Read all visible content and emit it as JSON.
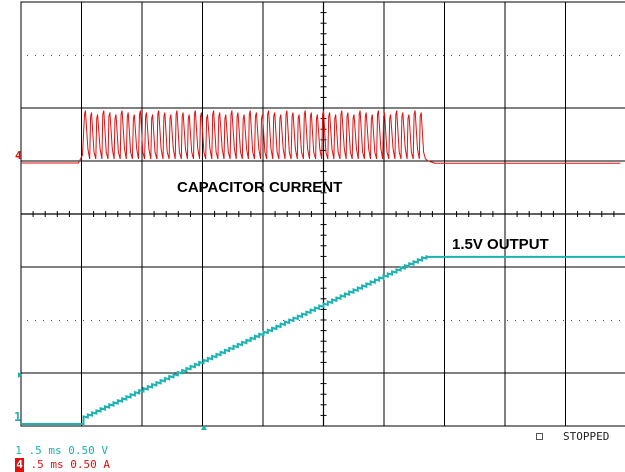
{
  "chart_data": {
    "type": "line",
    "title": "",
    "xlabel": "",
    "ylabel": "",
    "grid": true,
    "divisions": {
      "x": 10,
      "y": 8
    },
    "timebase": ".5 ms",
    "series": [
      {
        "name": "CAPACITOR CURRENT",
        "channel": "4",
        "color": "#e01010",
        "scale": "0.50 A",
        "marker": "4",
        "ripple_start_div": 1.05,
        "ripple_end_div": 6.7,
        "ripple_pulse_count": 56,
        "ripple_peak_div": 1.1,
        "ripple_baseline_div": 0.0
      },
      {
        "name": "1.5V OUTPUT",
        "channel": "1",
        "color": "#1ab2b2",
        "scale": "0.50 V",
        "marker": "1",
        "ramp_start_div": 1.0,
        "ramp_end_div": 6.7,
        "low_level_div": -0.05,
        "high_level_div": 3.05
      }
    ],
    "annotations": [
      "CAPACITOR CURRENT",
      "1.5V OUTPUT"
    ]
  },
  "status_bar": {
    "ch1_num": "1",
    "ch1_settings": " .5 ms 0.50 V ",
    "ch4_num": "4",
    "ch4_settings": " .5 ms 0.50 A",
    "state": "STOPPED"
  },
  "colors": {
    "ch1": "#1ab2b2",
    "ch4": "#e01010",
    "grid": "#000000"
  }
}
